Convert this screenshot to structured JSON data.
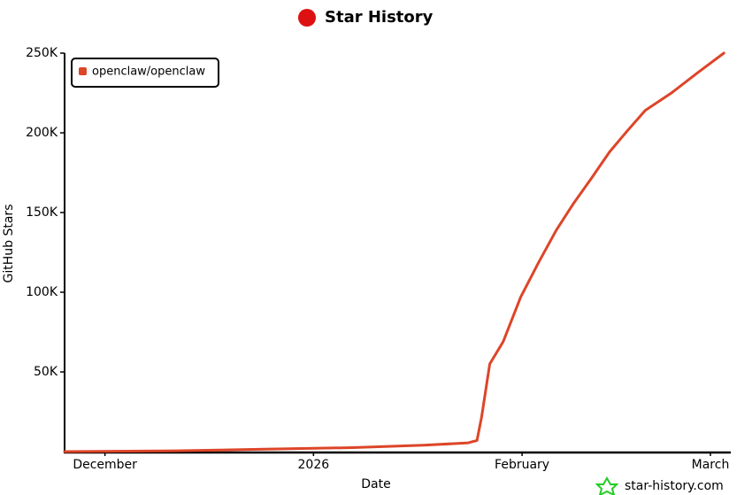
{
  "chart_data": {
    "type": "line",
    "title": "Star History",
    "x_label": "Date",
    "y_label": "GitHub Stars",
    "x": [
      -6,
      10.5,
      23.7,
      36.8,
      47.4,
      54,
      55.3,
      56,
      57.2,
      59.2,
      61.8,
      64.5,
      67.1,
      69.7,
      72.4,
      75,
      77.6,
      80.3,
      84.2,
      88.2,
      92
    ],
    "series": [
      {
        "name": "openclaw/openclaw",
        "color": "#dd4528",
        "values": [
          0,
          500,
          1500,
          2500,
          4000,
          5500,
          7000,
          22000,
          55000,
          69000,
          97000,
          119000,
          139000,
          156000,
          172000,
          188000,
          201000,
          214000,
          225000,
          238000,
          250000
        ]
      }
    ],
    "xlim": [
      -6,
      92.5
    ],
    "xticks": [
      {
        "value": 0,
        "label": "December"
      },
      {
        "value": 31,
        "label": "2026"
      },
      {
        "value": 62,
        "label": "February"
      },
      {
        "value": 90,
        "label": "March"
      }
    ],
    "ylim": [
      0,
      250000
    ],
    "yticks": [
      {
        "value": 50000,
        "label": "50K"
      },
      {
        "value": 100000,
        "label": "100K"
      },
      {
        "value": 150000,
        "label": "150K"
      },
      {
        "value": 200000,
        "label": "200K"
      },
      {
        "value": 250000,
        "label": "250K"
      }
    ],
    "legend": "top-left",
    "footer": "star-history.com"
  }
}
